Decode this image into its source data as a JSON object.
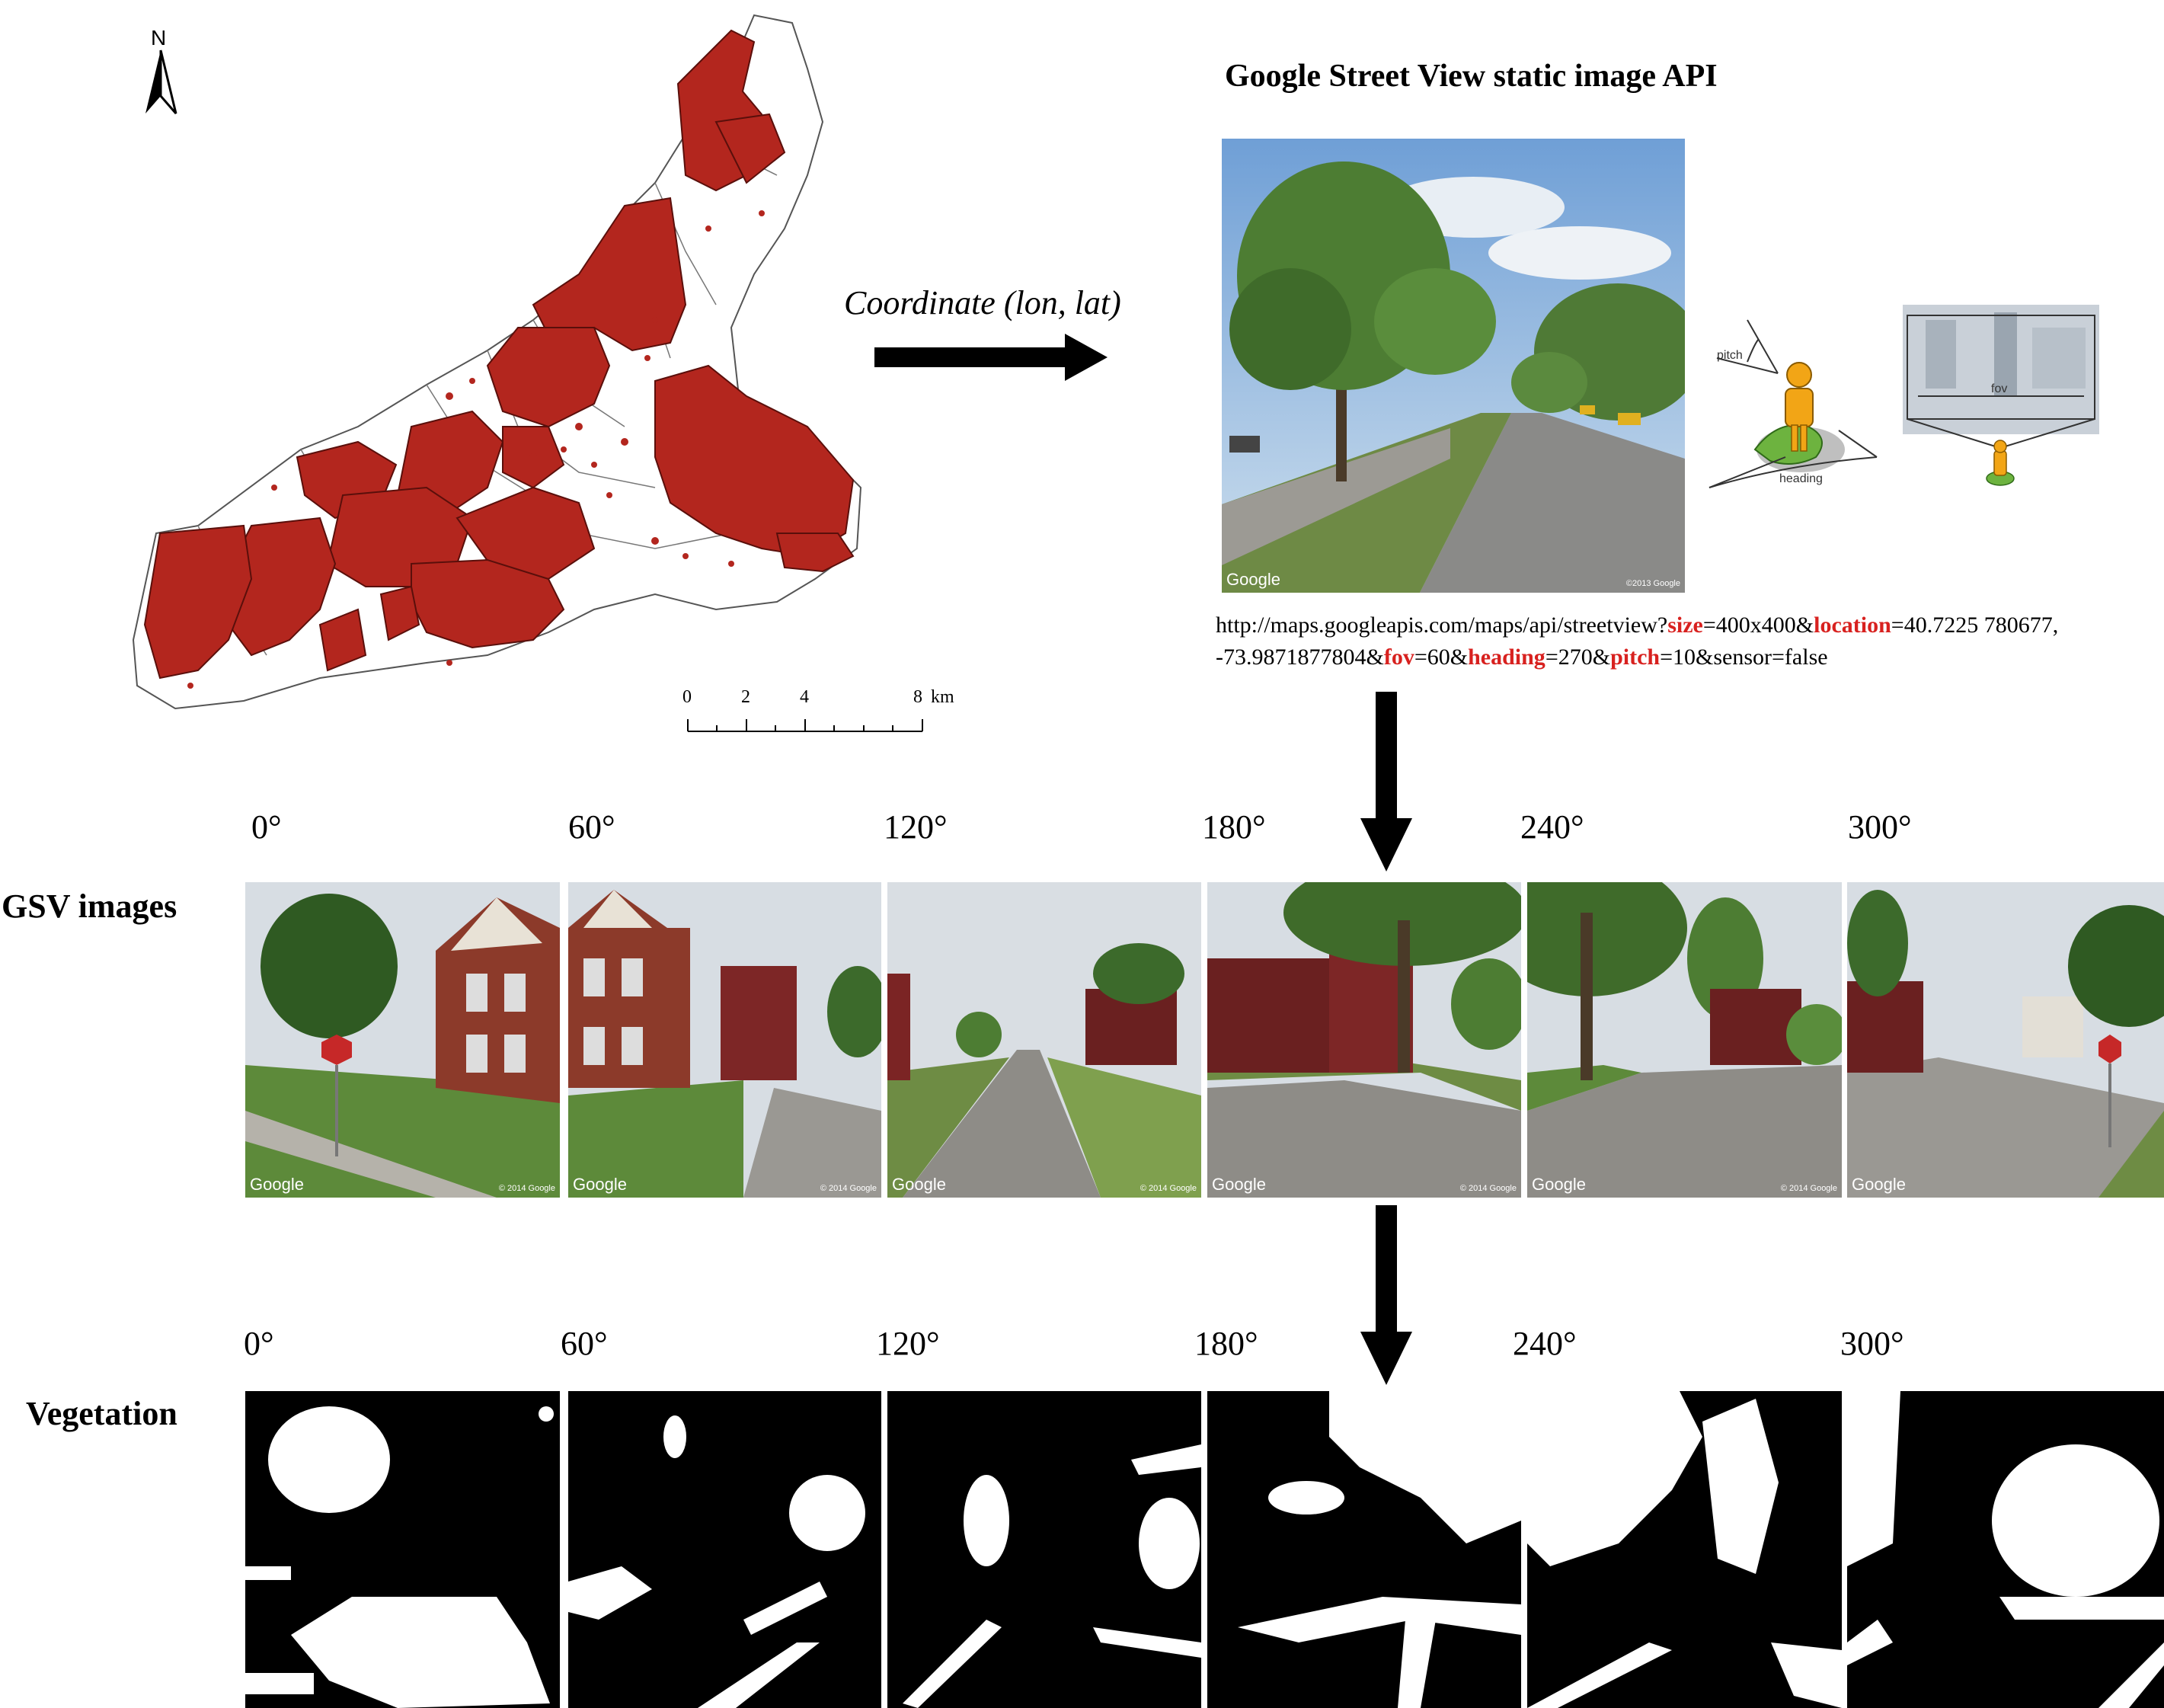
{
  "map": {
    "north_label": "N",
    "scale_ticks": [
      "0",
      "2",
      "4",
      "8"
    ],
    "scale_unit": "km",
    "colors": {
      "parcel_fill": "#b3261e",
      "boundary": "#555555"
    }
  },
  "coordinate_label": "Coordinate (lon, lat)",
  "api": {
    "title": "Google Street View static image API",
    "photo_watermark": "Google",
    "photo_copyright": "©2013 Google",
    "diagram_labels": {
      "pitch": "pitch",
      "heading": "heading",
      "fov": "fov"
    },
    "url": {
      "p1": "http://maps.googleapis.com/maps/api/streetview?",
      "k_size": "size",
      "p2": "=400x400&",
      "k_location": "location",
      "p3": "=40.7225 780677, -73.9871877804&",
      "k_fov": "fov",
      "p4": "=60&",
      "k_heading": "heading",
      "p5": "=270&",
      "k_pitch": "pitch",
      "p6": "=10&sensor=false"
    },
    "colors": {
      "keyword": "#d8211f"
    }
  },
  "gsv": {
    "label": "GSV images",
    "headings": [
      "0°",
      "60°",
      "120°",
      "180°",
      "240°",
      "300°"
    ],
    "watermark": "Google",
    "copyright": "© 2014 Google"
  },
  "vegetation": {
    "label": "Vegetation",
    "headings": [
      "0°",
      "60°",
      "120°",
      "180°",
      "240°",
      "300°"
    ]
  }
}
